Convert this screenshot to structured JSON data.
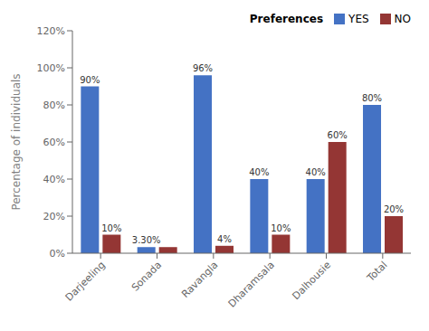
{
  "chart_data": {
    "type": "bar",
    "categories": [
      "Darjeeling",
      "Sonada",
      "Ravangla",
      "Dharamsala",
      "Dalhousie",
      "Total"
    ],
    "series": [
      {
        "name": "YES",
        "color": "#4472C4",
        "values": [
          90,
          3.3,
          96,
          40,
          40,
          80
        ],
        "value_labels": [
          "90%",
          "3.30%",
          "96%",
          "40%",
          "40%",
          "80%"
        ]
      },
      {
        "name": "NO",
        "color": "#943634",
        "values": [
          10,
          3.3,
          4,
          10,
          60,
          20
        ],
        "value_labels": [
          "10%",
          null,
          "4%",
          "10%",
          "60%",
          "20%"
        ]
      }
    ],
    "ylabel": "Percentage of individuals",
    "legend_title": "Preferences",
    "legend": "upper right",
    "ylim": [
      0,
      120
    ],
    "yticks": [
      {
        "value": 0,
        "label": "0%"
      },
      {
        "value": 20,
        "label": "20%"
      },
      {
        "value": 40,
        "label": "40%"
      },
      {
        "value": 60,
        "label": "60%"
      },
      {
        "value": 80,
        "label": "80%"
      },
      {
        "value": 100,
        "label": "100%"
      },
      {
        "value": 120,
        "label": "120%"
      }
    ],
    "data_labels": true,
    "grid": false
  }
}
